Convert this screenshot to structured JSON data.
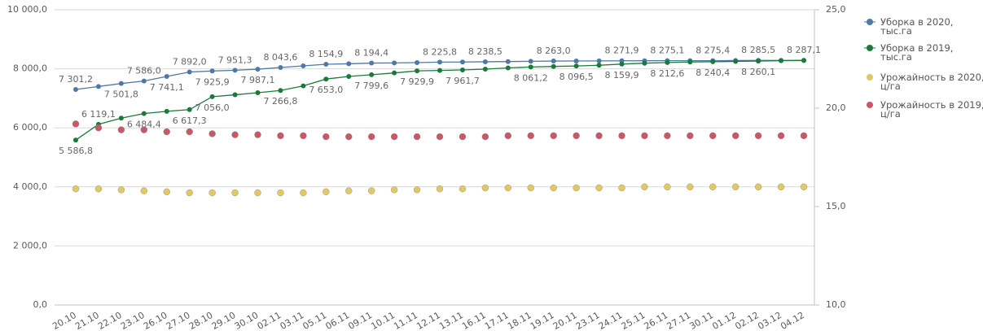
{
  "chart_data": {
    "type": "combo",
    "categories": [
      "20.10",
      "21.10",
      "22.10",
      "23.10",
      "26.10",
      "27.10",
      "28.10",
      "29.10",
      "30.10",
      "02.11",
      "03.11",
      "05.11",
      "06.11",
      "09.11",
      "10.11",
      "11.11",
      "12.11",
      "13.11",
      "16.11",
      "17.11",
      "18.11",
      "19.11",
      "20.11",
      "23.11",
      "24.11",
      "25.11",
      "26.11",
      "27.11",
      "30.11",
      "01.12",
      "02.12",
      "03.12",
      "04.12"
    ],
    "ylim": [
      0,
      10000
    ],
    "yticks": [
      {
        "value": 0,
        "label": "0,0"
      },
      {
        "value": 2000,
        "label": "2 000,0"
      },
      {
        "value": 4000,
        "label": "4 000,0"
      },
      {
        "value": 6000,
        "label": "6 000,0"
      },
      {
        "value": 8000,
        "label": "8 000,0"
      },
      {
        "value": 10000,
        "label": "10 000,0"
      }
    ],
    "y2lim": [
      10,
      25
    ],
    "y2ticks": [
      {
        "value": 10,
        "label": "10,0"
      },
      {
        "value": 15,
        "label": "15,0"
      },
      {
        "value": 20,
        "label": "20,0"
      },
      {
        "value": 25,
        "label": "25,0"
      }
    ],
    "grid": true,
    "legend": "right",
    "series": [
      {
        "name": "Уборка в 2020, тыс.га",
        "type": "line",
        "color": "#4e79a7",
        "values": [
          7301.2,
          7400,
          7501.8,
          7586.0,
          7741.1,
          7892.0,
          7925.9,
          7951.3,
          7987.1,
          8043.6,
          8100,
          8154.9,
          8170,
          8194.4,
          8200,
          8210,
          8225.8,
          8230,
          8238.5,
          8245,
          8255,
          8263.0,
          8265,
          8268,
          8271.9,
          8273,
          8275.1,
          8275.2,
          8275.4,
          8280,
          8285.5,
          8286,
          8287.1
        ],
        "value_labels": [
          "7 301,2",
          null,
          "7 501,8",
          "7 586,0",
          "7 741,1",
          "7 892,0",
          "7 925,9",
          "7 951,3",
          "7 987,1",
          "8 043,6",
          null,
          "8 154,9",
          null,
          "8 194,4",
          null,
          null,
          "8 225,8",
          null,
          "8 238,5",
          null,
          null,
          "8 263,0",
          null,
          null,
          "8 271,9",
          null,
          "8 275,1",
          null,
          "8 275,4",
          null,
          "8 285,5",
          null,
          "8 287,1"
        ]
      },
      {
        "name": "Уборка в 2019, тыс.га",
        "type": "line",
        "color": "#1b7a3a",
        "values": [
          5586.8,
          6119.1,
          6330,
          6484.4,
          6560,
          6617.3,
          7056.0,
          7120,
          7190,
          7266.8,
          7420,
          7653.0,
          7740,
          7799.6,
          7860,
          7929.9,
          7945,
          7961.7,
          7990,
          8030,
          8061.2,
          8080,
          8096.5,
          8120,
          8159.9,
          8190,
          8212.6,
          8230,
          8240.4,
          8250,
          8260.1,
          8275,
          8280
        ],
        "value_labels": [
          "5 586,8",
          "6 119,1",
          null,
          "6 484,4",
          null,
          "6 617,3",
          "7 056,0",
          null,
          null,
          "7 266,8",
          null,
          "7 653,0",
          null,
          "7 799,6",
          null,
          "7 929,9",
          null,
          "7 961,7",
          null,
          null,
          "8 061,2",
          null,
          "8 096,5",
          null,
          "8 159,9",
          null,
          "8 212,6",
          null,
          "8 240,4",
          null,
          "8 260,1",
          null,
          null
        ]
      },
      {
        "name": "Урожайность в 2020, ц/га",
        "type": "scatter",
        "axis": "y2",
        "color": "#e2c765",
        "values": [
          15.9,
          15.9,
          15.85,
          15.8,
          15.75,
          15.7,
          15.7,
          15.7,
          15.7,
          15.7,
          15.7,
          15.75,
          15.8,
          15.8,
          15.85,
          15.85,
          15.9,
          15.9,
          15.95,
          15.95,
          15.95,
          15.95,
          15.95,
          15.95,
          15.95,
          16.0,
          16.0,
          16.0,
          16.0,
          16.0,
          16.0,
          16.0,
          16.0
        ]
      },
      {
        "name": "Урожайность в 2019, ц/га",
        "type": "scatter",
        "axis": "y2",
        "color": "#c85868",
        "values": [
          19.2,
          19.0,
          18.9,
          18.9,
          18.8,
          18.8,
          18.7,
          18.65,
          18.65,
          18.6,
          18.6,
          18.55,
          18.55,
          18.55,
          18.55,
          18.55,
          18.55,
          18.55,
          18.55,
          18.6,
          18.6,
          18.6,
          18.6,
          18.6,
          18.6,
          18.6,
          18.6,
          18.6,
          18.6,
          18.6,
          18.6,
          18.6,
          18.6
        ]
      }
    ]
  }
}
